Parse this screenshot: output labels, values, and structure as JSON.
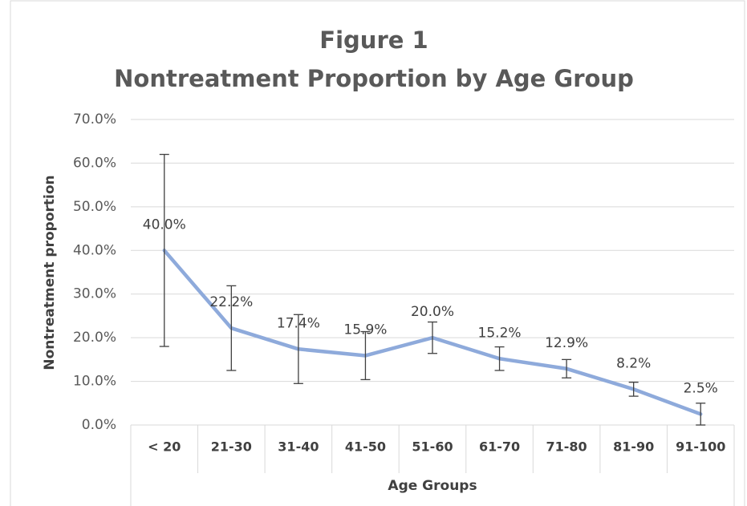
{
  "chart_data": {
    "type": "line",
    "title": "Figure 1",
    "subtitle": "Nontreatment Proportion by Age Group",
    "x_label": "Age Groups",
    "y_label": "Nontreatment proportion",
    "categories": [
      "< 20",
      "21-30",
      "31-40",
      "41-50",
      "51-60",
      "61-70",
      "71-80",
      "81-90",
      "91-100"
    ],
    "values": [
      40.0,
      22.2,
      17.4,
      15.9,
      20.0,
      15.2,
      12.9,
      8.2,
      2.5
    ],
    "value_labels": [
      "40.0%",
      "22.2%",
      "17.4%",
      "15.9%",
      "20.0%",
      "15.2%",
      "12.9%",
      "8.2%",
      "2.5%"
    ],
    "errors": [
      22,
      9.7,
      7.9,
      5.5,
      3.6,
      2.7,
      2.1,
      1.6,
      2.5
    ],
    "color": "#8eaadb",
    "error_color": "#404040",
    "ylim": [
      0,
      70
    ],
    "yticks": [
      {
        "value": 0,
        "label": "0.0%"
      },
      {
        "value": 10,
        "label": "10.0%"
      },
      {
        "value": 20,
        "label": "20.0%"
      },
      {
        "value": 30,
        "label": "30.0%"
      },
      {
        "value": 40,
        "label": "40.0%"
      },
      {
        "value": 50,
        "label": "50.0%"
      },
      {
        "value": 60,
        "label": "60.0%"
      },
      {
        "value": 70,
        "label": "70.0%"
      }
    ],
    "grid": true
  }
}
